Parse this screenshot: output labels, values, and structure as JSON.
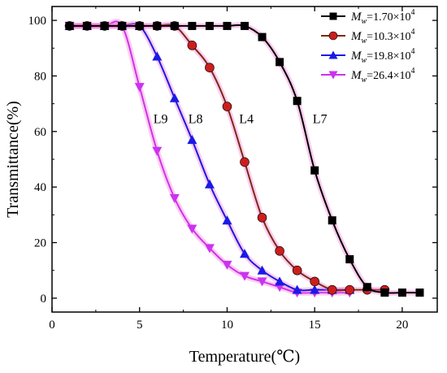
{
  "chart_data": {
    "type": "line",
    "xlabel": "Temperature(℃)",
    "ylabel": "Transmittance(%)",
    "xlim": [
      0,
      22
    ],
    "ylim": [
      -5,
      105
    ],
    "xticks": [
      0,
      5,
      10,
      15,
      20
    ],
    "yticks": [
      0,
      20,
      40,
      60,
      80,
      100
    ],
    "grid": false,
    "legend_position": "top-right",
    "series": [
      {
        "key": "L7",
        "legend": {
          "symbol": "M",
          "subscript": "w",
          "text": "=1.70×10",
          "exp": "4"
        },
        "curve_label": "L7",
        "marker": "square",
        "color": "#000000",
        "highlight": "#ff6fd0",
        "x": [
          1,
          2,
          3,
          4,
          5,
          6,
          7,
          8,
          9,
          10,
          11,
          12,
          13,
          14,
          15,
          16,
          17,
          18,
          19,
          20,
          21
        ],
        "y": [
          98,
          98,
          98,
          98,
          98,
          98,
          98,
          98,
          98,
          98,
          98,
          94,
          85,
          71,
          46,
          28,
          14,
          4,
          2,
          2,
          2
        ]
      },
      {
        "key": "L4",
        "legend": {
          "symbol": "M",
          "subscript": "w",
          "text": "=10.3×10",
          "exp": "4"
        },
        "curve_label": "L4",
        "marker": "circle",
        "color": "#cc1e1e",
        "line_color": "#7a2a12",
        "highlight": "#ff6fd0",
        "x": [
          1,
          2,
          3,
          4,
          5,
          6,
          7,
          8,
          9,
          10,
          11,
          12,
          13,
          14,
          15,
          16,
          17,
          18,
          19
        ],
        "y": [
          98,
          98,
          98,
          98,
          98,
          98,
          98,
          91,
          83,
          69,
          49,
          29,
          17,
          10,
          6,
          3,
          3,
          3,
          3
        ]
      },
      {
        "key": "L8",
        "legend": {
          "symbol": "M",
          "subscript": "w",
          "text": "=19.8×10",
          "exp": "4"
        },
        "curve_label": "L8",
        "marker": "triangle-up",
        "color": "#1a1ae6",
        "highlight": "#ff6fd0",
        "x": [
          1,
          2,
          3,
          4,
          5,
          6,
          7,
          8,
          9,
          10,
          11,
          12,
          13,
          14,
          15,
          16,
          17
        ],
        "y": [
          98,
          98,
          98,
          98,
          98,
          87,
          72,
          57,
          41,
          28,
          16,
          10,
          6,
          3,
          3,
          3,
          3
        ]
      },
      {
        "key": "L9",
        "legend": {
          "symbol": "M",
          "subscript": "w",
          "text": "=26.4×10",
          "exp": "4"
        },
        "curve_label": "L9",
        "marker": "triangle-down",
        "color": "#cc33ee",
        "highlight": "#ff6fd0",
        "x": [
          1,
          2,
          3,
          4,
          5,
          6,
          7,
          8,
          9,
          10,
          11,
          12,
          13,
          14,
          15,
          16,
          17
        ],
        "y": [
          98,
          98,
          98,
          98,
          76,
          53,
          36,
          25,
          18,
          12,
          8,
          6,
          4,
          2,
          2,
          2,
          2
        ]
      }
    ]
  }
}
